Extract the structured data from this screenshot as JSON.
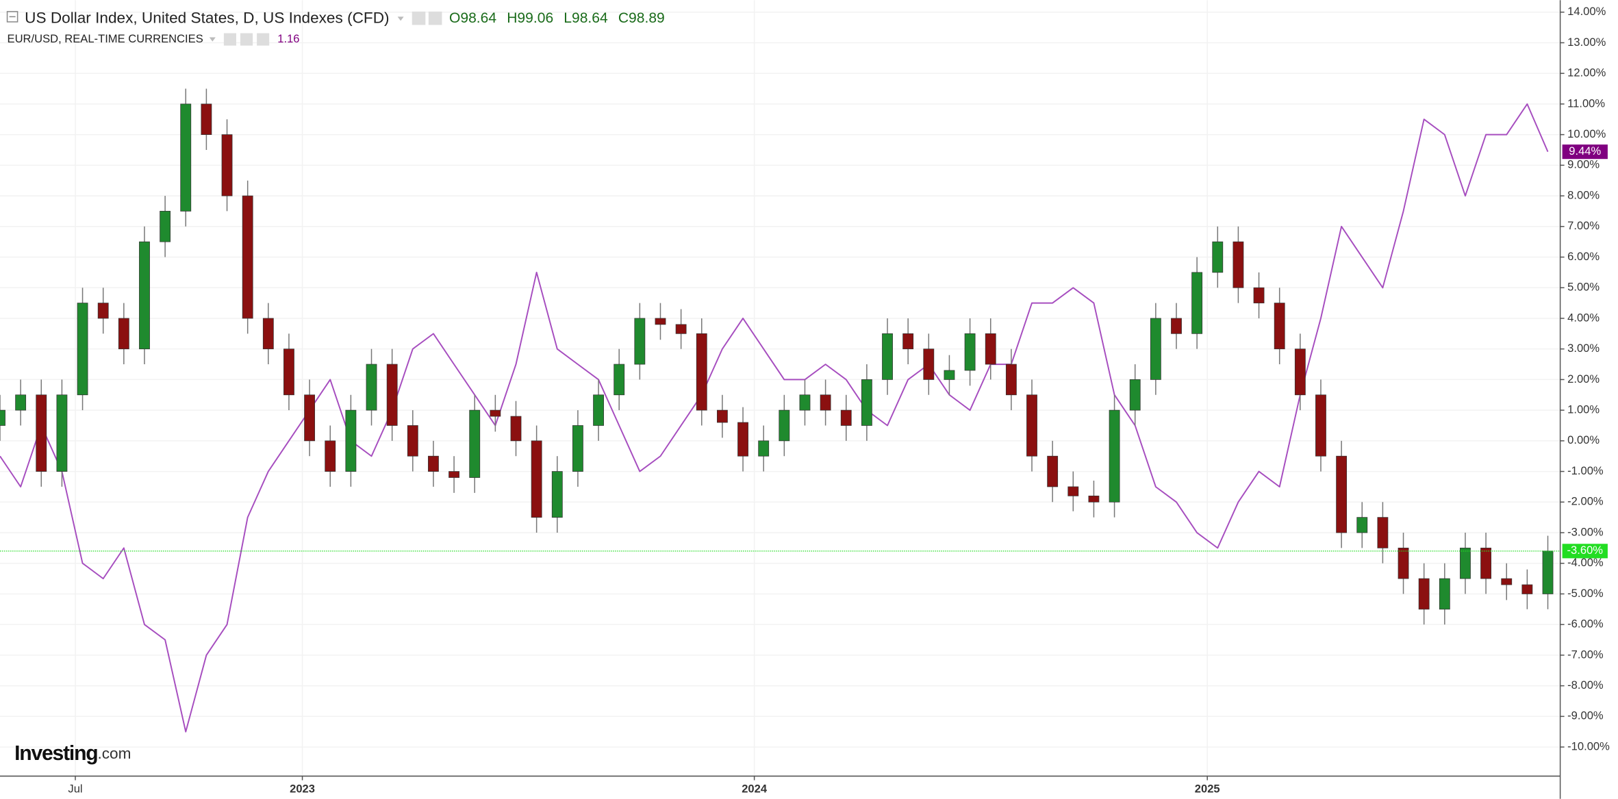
{
  "chart_data": {
    "type": "candlestick",
    "watermark_bold": "Investing",
    "watermark_suffix": ".com",
    "x": [
      0,
      1,
      2,
      3,
      4,
      5,
      6,
      7,
      8,
      9,
      10,
      11,
      12,
      13,
      14,
      15,
      16,
      17,
      18,
      19,
      20,
      21,
      22,
      23,
      24,
      25,
      26,
      27,
      28,
      29,
      30,
      31,
      32,
      33,
      34,
      35,
      36,
      37,
      38,
      39,
      40,
      41,
      42,
      43,
      44,
      45,
      46,
      47,
      48,
      49,
      50,
      51,
      52,
      53,
      54,
      55,
      56,
      57,
      58,
      59,
      60,
      61,
      62,
      63,
      64,
      65,
      66,
      67,
      68,
      69,
      70,
      71,
      72,
      73,
      74,
      75
    ],
    "xlim": [
      0,
      75.6
    ],
    "xticks": [
      {
        "value": 3.65,
        "label": "Jul"
      },
      {
        "value": 14.65,
        "label": "2023"
      },
      {
        "value": 36.55,
        "label": "2024"
      },
      {
        "value": 58.5,
        "label": "2025"
      }
    ],
    "ylim": [
      -10.95,
      14.39
    ],
    "yticks": [
      {
        "value": 14,
        "label": "14.00%"
      },
      {
        "value": 13,
        "label": "13.00%"
      },
      {
        "value": 12,
        "label": "12.00%"
      },
      {
        "value": 11,
        "label": "11.00%"
      },
      {
        "value": 10,
        "label": "10.00%"
      },
      {
        "value": 9,
        "label": "9.00%"
      },
      {
        "value": 8,
        "label": "8.00%"
      },
      {
        "value": 7,
        "label": "7.00%"
      },
      {
        "value": 6,
        "label": "6.00%"
      },
      {
        "value": 5,
        "label": "5.00%"
      },
      {
        "value": 4,
        "label": "4.00%"
      },
      {
        "value": 3,
        "label": "3.00%"
      },
      {
        "value": 2,
        "label": "2.00%"
      },
      {
        "value": 1,
        "label": "1.00%"
      },
      {
        "value": 0,
        "label": "0.00%"
      },
      {
        "value": -1,
        "label": "-1.00%"
      },
      {
        "value": -2,
        "label": "-2.00%"
      },
      {
        "value": -3,
        "label": "-3.00%"
      },
      {
        "value": -4,
        "label": "-4.00%"
      },
      {
        "value": -5,
        "label": "-5.00%"
      },
      {
        "value": -6,
        "label": "-6.00%"
      },
      {
        "value": -7,
        "label": "-7.00%"
      },
      {
        "value": -8,
        "label": "-8.00%"
      },
      {
        "value": -9,
        "label": "-9.00%"
      },
      {
        "value": -10,
        "label": "-10.00%"
      }
    ],
    "grid": true,
    "series": [
      {
        "name": "US Dollar Index, United States, D, US Indexes (CFD)",
        "type": "candlestick",
        "quote": [
          "O98.64",
          "H99.06",
          "L98.64",
          "C98.89"
        ],
        "up_color": "#1f8a2e",
        "down_color": "#8b1010",
        "quote_color": "#1a6b1a",
        "tag_color": "#22dd22",
        "last_label": "-3.60%",
        "open": [
          0.5,
          1,
          1.5,
          -1,
          1.5,
          4.5,
          4,
          3,
          6.5,
          7.5,
          11,
          10,
          8,
          4,
          3,
          1.5,
          0,
          -1,
          1,
          2.5,
          0.5,
          -0.5,
          -1,
          -1.2,
          1,
          0.8,
          0,
          -2.5,
          -1,
          0.5,
          1.5,
          2.5,
          4,
          3.8,
          3.5,
          1,
          0.6,
          -0.5,
          0,
          1,
          1.5,
          1,
          0.5,
          2,
          3.5,
          3,
          2,
          2.3,
          3.5,
          2.5,
          1.5,
          -0.5,
          -1.5,
          -1.8,
          -2,
          1,
          2,
          4,
          3.5,
          5.5,
          6.5,
          5,
          4.5,
          3,
          1.5,
          -0.5,
          -3,
          -2.5,
          -3.5,
          -4.5,
          -5.5,
          -4.5,
          -3.5,
          -4.5,
          -4.7,
          -5
        ],
        "high": [
          1.5,
          2,
          2,
          2,
          5,
          5,
          4.5,
          7,
          8,
          11.5,
          11.5,
          10.5,
          8.5,
          4.5,
          3.5,
          2,
          0.5,
          1.5,
          3,
          3,
          1,
          0,
          -0.5,
          1.5,
          1.5,
          1.3,
          0.5,
          -0.5,
          1,
          2,
          3,
          4.5,
          4.5,
          4.3,
          4,
          1.5,
          1.1,
          0.5,
          1.5,
          2,
          2,
          1.5,
          2.5,
          4,
          4,
          3.5,
          2.8,
          4,
          4,
          3,
          2,
          0,
          -1,
          -1.3,
          1.5,
          2.5,
          4.5,
          4.5,
          6,
          7,
          7,
          5.5,
          5,
          3.5,
          2,
          0,
          -2,
          -2,
          -3,
          -4,
          -4,
          -3,
          -3,
          -4,
          -4.2,
          -3.1
        ],
        "low": [
          0,
          0.5,
          -1.5,
          -1.5,
          1,
          3.5,
          2.5,
          2.5,
          6,
          7,
          9.5,
          7.5,
          3.5,
          2.5,
          1,
          -0.5,
          -1.5,
          -1.5,
          0.5,
          0,
          -1,
          -1.5,
          -1.7,
          -1.7,
          0.3,
          -0.5,
          -3,
          -3,
          -1.5,
          0,
          1,
          2,
          3.3,
          3,
          0.5,
          0.1,
          -1,
          -1,
          -0.5,
          0.5,
          0.5,
          0,
          0,
          1.5,
          2.5,
          1.5,
          1.5,
          1.8,
          2,
          1,
          -1,
          -2,
          -2.3,
          -2.5,
          -2.5,
          0.5,
          1.5,
          3,
          3,
          5,
          4.5,
          4,
          2.5,
          1,
          -1,
          -3.5,
          -3.5,
          -4,
          -5,
          -6,
          -6,
          -5,
          -5,
          -5.2,
          -5.5,
          -5.5
        ],
        "close": [
          1,
          1.5,
          -1,
          1.5,
          4.5,
          4,
          3,
          6.5,
          7.5,
          11,
          10,
          8,
          4,
          3,
          1.5,
          0,
          -1,
          1,
          2.5,
          0.5,
          -0.5,
          -1,
          -1.2,
          1,
          0.8,
          0,
          -2.5,
          -1,
          0.5,
          1.5,
          2.5,
          4,
          3.8,
          3.5,
          1,
          0.6,
          -0.5,
          0,
          1,
          1.5,
          1,
          0.5,
          2,
          3.5,
          3,
          2,
          2.3,
          3.5,
          2.5,
          1.5,
          -0.5,
          -1.5,
          -1.8,
          -2,
          1,
          2,
          4,
          3.5,
          5.5,
          6.5,
          5,
          4.5,
          3,
          1.5,
          -0.5,
          -3,
          -2.5,
          -3.5,
          -4.5,
          -5.5,
          -4.5,
          -3.5,
          -4.5,
          -4.7,
          -5,
          -3.6
        ]
      },
      {
        "name": "EUR/USD, REAL-TIME CURRENCIES",
        "type": "line",
        "color": "#a64dbf",
        "tag_color": "#800080",
        "quote": "1.16",
        "quote_color": "#800080",
        "last_label": "9.44%",
        "values": [
          -0.5,
          -1.5,
          0.5,
          -1,
          -4,
          -4.5,
          -3.5,
          -6,
          -6.5,
          -9.5,
          -7,
          -6,
          -2.5,
          -1,
          0,
          1,
          2,
          0,
          -0.5,
          1,
          3,
          3.5,
          2.5,
          1.5,
          0.5,
          2.5,
          5.5,
          3,
          2.5,
          2,
          0.5,
          -1,
          -0.5,
          0.5,
          1.5,
          3,
          4,
          3,
          2,
          2,
          2.5,
          2,
          1,
          0.5,
          2,
          2.5,
          1.5,
          1,
          2.5,
          2.5,
          4.5,
          4.5,
          5,
          4.5,
          1.5,
          0.5,
          -1.5,
          -2,
          -3,
          -3.5,
          -2,
          -1,
          -1.5,
          1.5,
          4,
          7,
          6,
          5,
          7.5,
          10.5,
          10,
          8,
          10,
          10,
          11,
          9.44
        ]
      }
    ]
  }
}
